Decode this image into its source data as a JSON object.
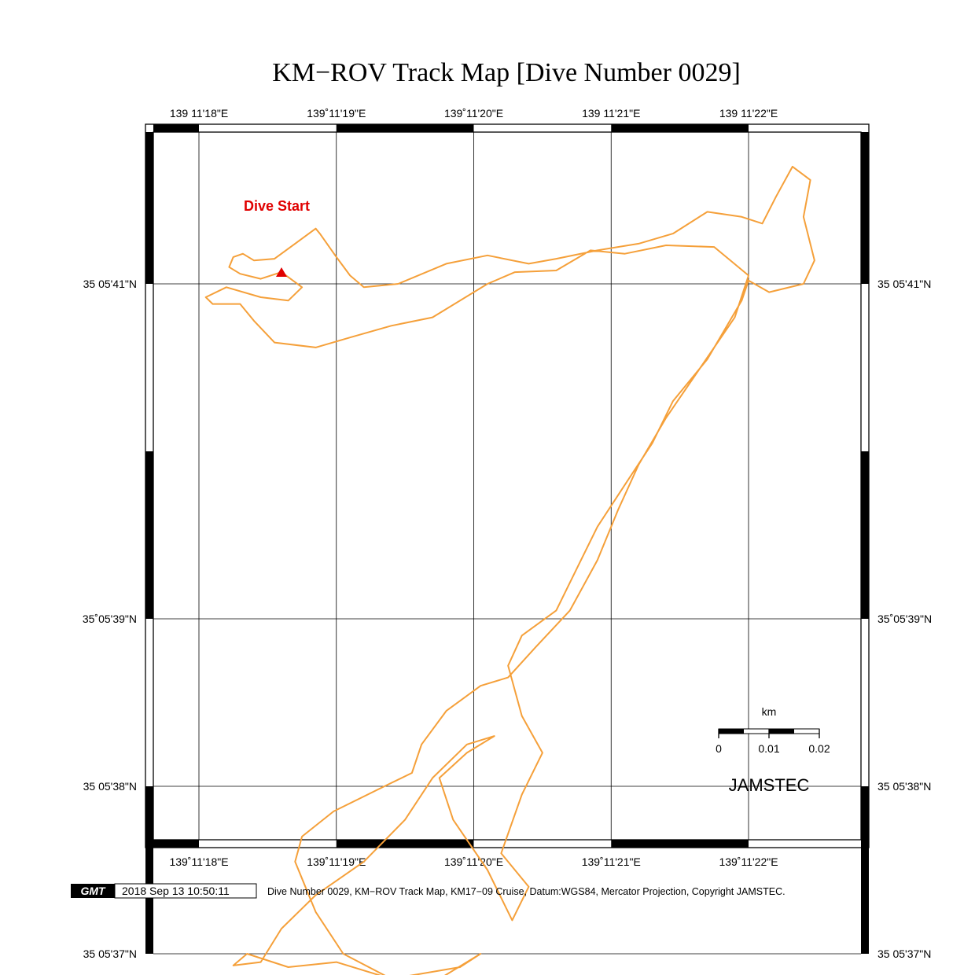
{
  "title": "KM−ROV Track Map [Dive Number 0029]",
  "top_lon_labels": [
    "139 11'18\"E",
    "139˚11'19\"E",
    "139˚11'20\"E",
    "139 11'21\"E",
    "139 11'22\"E"
  ],
  "bottom_lon_labels": [
    "139˚11'18\"E",
    "139˚11'19\"E",
    "139˚11'20\"E",
    "139˚11'21\"E",
    "139˚11'22\"E"
  ],
  "left_lat_labels": [
    "35 05'41\"N",
    "35˚05'39\"N",
    "35 05'38\"N",
    "35 05'37\"N"
  ],
  "right_lat_labels": [
    "35 05'41\"N",
    "35˚05'39\"N",
    "35 05'38\"N",
    "35 05'37\"N"
  ],
  "dive_start_label": "Dive Start",
  "scale_bar": {
    "unit": "km",
    "ticks": [
      "0",
      "0.01",
      "0.02"
    ]
  },
  "agency": "JAMSTEC",
  "footer": {
    "logo": "GMT",
    "timestamp": "2018 Sep 13 10:50:11",
    "caption": "Dive Number 0029, KM−ROV Track Map, KM17−09 Cruise, Datum:WGS84, Mercator Projection, Copyright JAMSTEC."
  },
  "colors": {
    "track": "#f5a03a",
    "start_marker": "#e00000",
    "text_red": "#e00000",
    "frame": "#000000"
  },
  "icons": {
    "start_marker": "triangle-icon"
  },
  "map_data": {
    "type": "track",
    "lon_ticks_sec": [
      18,
      19,
      20,
      21,
      22
    ],
    "lat_ticks_sec": [
      41,
      39,
      38,
      37
    ],
    "track_lonlat_sec": [
      [
        18.6,
        41.07
      ],
      [
        18.45,
        41.03
      ],
      [
        18.3,
        41.06
      ],
      [
        18.22,
        41.1
      ],
      [
        18.25,
        41.16
      ],
      [
        18.32,
        41.18
      ],
      [
        18.4,
        41.14
      ],
      [
        18.55,
        41.15
      ],
      [
        18.7,
        41.24
      ],
      [
        18.85,
        41.33
      ],
      [
        18.88,
        41.3
      ],
      [
        19.0,
        41.16
      ],
      [
        19.1,
        41.05
      ],
      [
        19.2,
        40.98
      ],
      [
        19.45,
        41.0
      ],
      [
        19.8,
        41.12
      ],
      [
        20.1,
        41.17
      ],
      [
        20.4,
        41.12
      ],
      [
        20.6,
        41.15
      ],
      [
        20.9,
        41.2
      ],
      [
        21.2,
        41.24
      ],
      [
        21.45,
        41.3
      ],
      [
        21.7,
        41.43
      ],
      [
        21.95,
        41.4
      ],
      [
        22.1,
        41.36
      ],
      [
        22.2,
        41.52
      ],
      [
        22.32,
        41.7
      ],
      [
        22.45,
        41.62
      ],
      [
        22.4,
        41.4
      ],
      [
        22.48,
        41.14
      ],
      [
        22.4,
        41.0
      ],
      [
        22.15,
        40.95
      ],
      [
        22.0,
        41.02
      ],
      [
        21.95,
        40.9
      ],
      [
        21.7,
        40.55
      ],
      [
        21.45,
        40.3
      ],
      [
        21.3,
        40.05
      ],
      [
        21.1,
        39.8
      ],
      [
        20.9,
        39.55
      ],
      [
        20.75,
        39.3
      ],
      [
        20.6,
        39.05
      ],
      [
        20.35,
        38.9
      ],
      [
        20.25,
        38.72
      ],
      [
        20.35,
        38.42
      ],
      [
        20.5,
        38.2
      ],
      [
        20.35,
        37.95
      ],
      [
        20.2,
        37.6
      ],
      [
        20.4,
        37.4
      ],
      [
        20.28,
        37.2
      ],
      [
        20.1,
        37.5
      ],
      [
        19.85,
        37.8
      ],
      [
        19.75,
        38.05
      ],
      [
        19.95,
        38.2
      ],
      [
        20.15,
        38.3
      ],
      [
        19.95,
        38.25
      ],
      [
        19.7,
        38.05
      ],
      [
        19.5,
        37.8
      ],
      [
        19.2,
        37.55
      ],
      [
        18.85,
        37.35
      ],
      [
        18.6,
        37.15
      ],
      [
        18.45,
        36.95
      ],
      [
        18.25,
        36.93
      ],
      [
        18.35,
        37.0
      ],
      [
        18.65,
        36.92
      ],
      [
        19.0,
        36.95
      ],
      [
        19.4,
        36.85
      ],
      [
        19.9,
        36.92
      ],
      [
        20.05,
        37.0
      ],
      [
        19.75,
        36.85
      ],
      [
        19.4,
        36.85
      ],
      [
        19.05,
        37.0
      ],
      [
        18.85,
        37.25
      ],
      [
        18.7,
        37.55
      ],
      [
        18.75,
        37.7
      ],
      [
        18.98,
        37.85
      ],
      [
        19.35,
        38.0
      ],
      [
        19.55,
        38.08
      ],
      [
        19.62,
        38.25
      ],
      [
        19.8,
        38.45
      ],
      [
        20.05,
        38.6
      ],
      [
        20.25,
        38.65
      ],
      [
        20.45,
        38.83
      ],
      [
        20.7,
        39.05
      ],
      [
        20.9,
        39.35
      ],
      [
        21.05,
        39.65
      ],
      [
        21.2,
        39.92
      ],
      [
        21.4,
        40.2
      ],
      [
        21.65,
        40.5
      ],
      [
        21.9,
        40.8
      ],
      [
        22.0,
        41.05
      ],
      [
        21.75,
        41.22
      ],
      [
        21.4,
        41.23
      ],
      [
        21.1,
        41.18
      ],
      [
        20.85,
        41.2
      ],
      [
        20.6,
        41.08
      ],
      [
        20.3,
        41.07
      ],
      [
        20.1,
        41.0
      ],
      [
        19.7,
        40.8
      ],
      [
        19.4,
        40.75
      ],
      [
        19.1,
        40.68
      ],
      [
        18.85,
        40.62
      ],
      [
        18.55,
        40.65
      ],
      [
        18.4,
        40.78
      ],
      [
        18.3,
        40.88
      ],
      [
        18.1,
        40.88
      ],
      [
        18.05,
        40.92
      ],
      [
        18.2,
        40.98
      ],
      [
        18.45,
        40.92
      ],
      [
        18.65,
        40.9
      ],
      [
        18.75,
        40.98
      ],
      [
        18.6,
        41.07
      ]
    ]
  }
}
